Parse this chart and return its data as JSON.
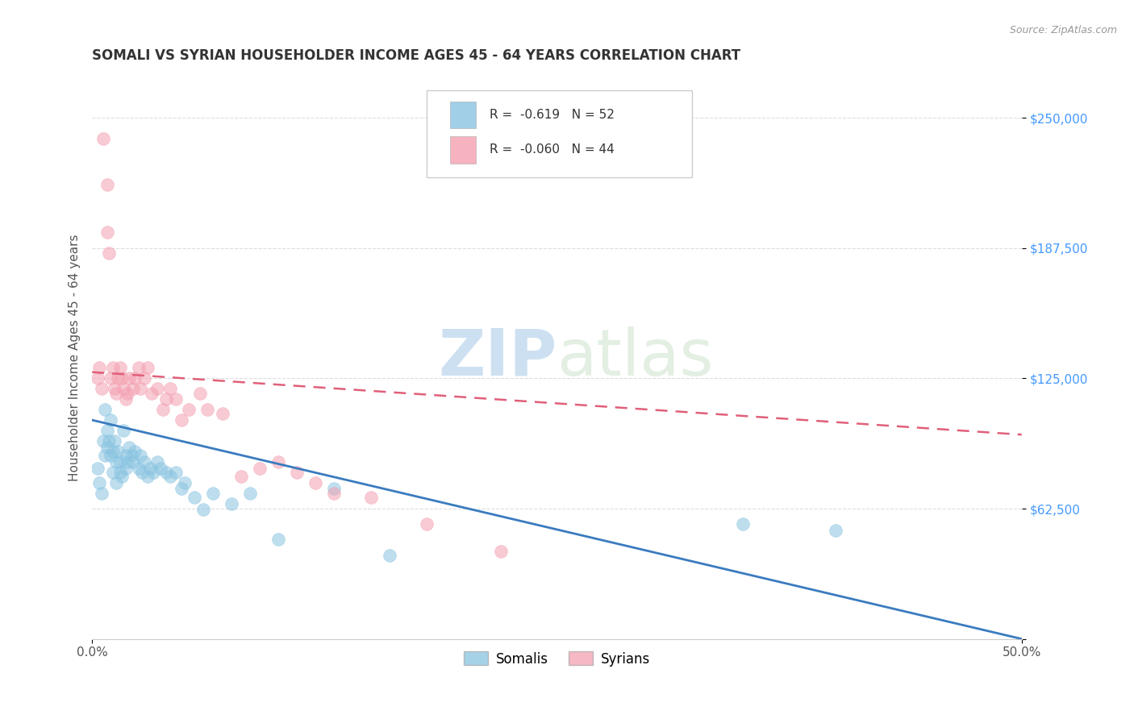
{
  "title": "SOMALI VS SYRIAN HOUSEHOLDER INCOME AGES 45 - 64 YEARS CORRELATION CHART",
  "source": "Source: ZipAtlas.com",
  "ylabel": "Householder Income Ages 45 - 64 years",
  "xlim": [
    0,
    0.5
  ],
  "ylim": [
    0,
    270000
  ],
  "xtick_positions": [
    0.0,
    0.5
  ],
  "xticklabels": [
    "0.0%",
    "50.0%"
  ],
  "ytick_values": [
    0,
    62500,
    125000,
    187500,
    250000
  ],
  "yticklabels": [
    "",
    "$62,500",
    "$125,000",
    "$187,500",
    "$250,000"
  ],
  "grid_color": "#dddddd",
  "background_color": "#ffffff",
  "somali_color": "#89c4e1",
  "syrian_color": "#f4a0b0",
  "somali_line_color": "#3a7bbf",
  "syrian_line_color": "#e0607a",
  "watermark_zip": "ZIP",
  "watermark_atlas": "atlas",
  "legend_r_somali": "-0.619",
  "legend_n_somali": "52",
  "legend_r_syrian": "-0.060",
  "legend_n_syrian": "44",
  "somali_x": [
    0.003,
    0.004,
    0.005,
    0.006,
    0.007,
    0.007,
    0.008,
    0.008,
    0.009,
    0.01,
    0.01,
    0.011,
    0.011,
    0.012,
    0.013,
    0.013,
    0.014,
    0.015,
    0.015,
    0.016,
    0.017,
    0.018,
    0.018,
    0.019,
    0.02,
    0.021,
    0.022,
    0.023,
    0.025,
    0.026,
    0.027,
    0.028,
    0.03,
    0.031,
    0.033,
    0.035,
    0.037,
    0.04,
    0.042,
    0.045,
    0.048,
    0.05,
    0.055,
    0.06,
    0.065,
    0.075,
    0.085,
    0.1,
    0.13,
    0.16,
    0.35,
    0.4
  ],
  "somali_y": [
    82000,
    75000,
    70000,
    95000,
    110000,
    88000,
    100000,
    92000,
    95000,
    105000,
    88000,
    90000,
    80000,
    95000,
    85000,
    75000,
    90000,
    85000,
    80000,
    78000,
    100000,
    88000,
    82000,
    85000,
    92000,
    88000,
    85000,
    90000,
    82000,
    88000,
    80000,
    85000,
    78000,
    82000,
    80000,
    85000,
    82000,
    80000,
    78000,
    80000,
    72000,
    75000,
    68000,
    62000,
    70000,
    65000,
    70000,
    48000,
    72000,
    40000,
    55000,
    52000
  ],
  "syrian_x": [
    0.003,
    0.004,
    0.005,
    0.006,
    0.008,
    0.008,
    0.009,
    0.01,
    0.011,
    0.012,
    0.013,
    0.014,
    0.015,
    0.016,
    0.017,
    0.018,
    0.019,
    0.02,
    0.022,
    0.023,
    0.025,
    0.026,
    0.028,
    0.03,
    0.032,
    0.035,
    0.038,
    0.04,
    0.042,
    0.045,
    0.048,
    0.052,
    0.058,
    0.062,
    0.07,
    0.08,
    0.09,
    0.1,
    0.11,
    0.12,
    0.13,
    0.15,
    0.18,
    0.22
  ],
  "syrian_y": [
    125000,
    130000,
    120000,
    240000,
    218000,
    195000,
    185000,
    125000,
    130000,
    120000,
    118000,
    125000,
    130000,
    125000,
    120000,
    115000,
    118000,
    125000,
    120000,
    125000,
    130000,
    120000,
    125000,
    130000,
    118000,
    120000,
    110000,
    115000,
    120000,
    115000,
    105000,
    110000,
    118000,
    110000,
    108000,
    78000,
    82000,
    85000,
    80000,
    75000,
    70000,
    68000,
    55000,
    42000
  ],
  "somali_trend_x": [
    0.0,
    0.5
  ],
  "somali_trend_y": [
    105000,
    0
  ],
  "syrian_trend_x": [
    0.0,
    0.5
  ],
  "syrian_trend_y": [
    128000,
    98000
  ]
}
